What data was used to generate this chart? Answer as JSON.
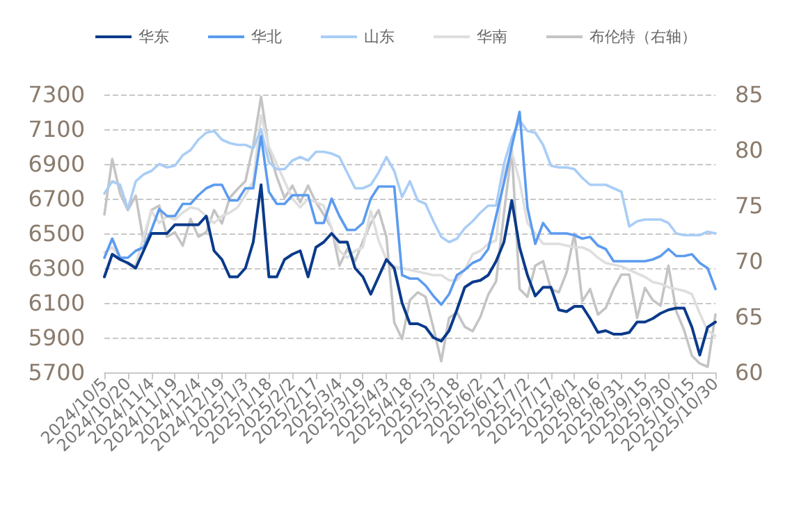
{
  "chart_data": {
    "type": "line",
    "categories": [
      "2024/10/5",
      null,
      null,
      "2024/10/20",
      null,
      null,
      "2024/11/4",
      null,
      null,
      "2024/11/19",
      null,
      null,
      "2024/12/4",
      null,
      null,
      "2024/12/19",
      null,
      null,
      "2025/1/3",
      null,
      null,
      "2025/1/18",
      null,
      null,
      "2025/2/2",
      null,
      null,
      "2025/2/17",
      null,
      null,
      "2025/3/4",
      null,
      null,
      "2025/3/19",
      null,
      null,
      "2025/4/3",
      null,
      null,
      "2025/4/18",
      null,
      null,
      "2025/5/3",
      null,
      null,
      "2025/5/18",
      null,
      null,
      "2025/6/2",
      null,
      null,
      "2025/6/17",
      null,
      null,
      "2025/7/2",
      null,
      null,
      "2025/7/17",
      null,
      null,
      "2025/8/1",
      null,
      null,
      "2025/8/16",
      null,
      null,
      "2025/8/31",
      null,
      null,
      "2025/9/15",
      null,
      null,
      "2025/9/30",
      null,
      null,
      "2025/10/15",
      null,
      null,
      "2025/10/30"
    ],
    "series": [
      {
        "name": "华东",
        "color": "#0a3a8a",
        "values": [
          6250,
          6380,
          6350,
          6330,
          6300,
          6400,
          6500,
          6500,
          6500,
          6550,
          6550,
          6550,
          6550,
          6600,
          6400,
          6350,
          6250,
          6250,
          6300,
          6450,
          6780,
          6250,
          6250,
          6350,
          6380,
          6400,
          6250,
          6420,
          6450,
          6500,
          6450,
          6450,
          6300,
          6250,
          6150,
          6250,
          6350,
          6300,
          6100,
          5980,
          5980,
          5960,
          5900,
          5880,
          5940,
          6060,
          6190,
          6220,
          6230,
          6260,
          6340,
          6450,
          6690,
          6420,
          6260,
          6140,
          6190,
          6190,
          6060,
          6050,
          6080,
          6080,
          6010,
          5930,
          5940,
          5920,
          5920,
          5930,
          5990,
          5990,
          6010,
          6040,
          6060,
          6070,
          6070,
          5960,
          5800,
          5960,
          5990
        ]
      },
      {
        "name": "华北",
        "color": "#5b9bef",
        "values": [
          6360,
          6470,
          6360,
          6360,
          6400,
          6420,
          6520,
          6640,
          6600,
          6600,
          6670,
          6670,
          6720,
          6760,
          6780,
          6780,
          6690,
          6690,
          6760,
          6760,
          7060,
          6740,
          6670,
          6670,
          6720,
          6720,
          6720,
          6560,
          6560,
          6700,
          6600,
          6520,
          6520,
          6560,
          6700,
          6770,
          6770,
          6770,
          6260,
          6240,
          6240,
          6200,
          6140,
          6090,
          6150,
          6260,
          6290,
          6330,
          6350,
          6410,
          6600,
          6790,
          7000,
          7200,
          6650,
          6440,
          6560,
          6500,
          6500,
          6500,
          6490,
          6470,
          6480,
          6430,
          6410,
          6340,
          6340,
          6340,
          6340,
          6340,
          6350,
          6370,
          6410,
          6370,
          6370,
          6380,
          6330,
          6300,
          6180
        ]
      },
      {
        "name": "山东",
        "color": "#a9cdf6",
        "values": [
          6730,
          6800,
          6780,
          6640,
          6800,
          6840,
          6860,
          6900,
          6880,
          6890,
          6950,
          6980,
          7040,
          7080,
          7090,
          7040,
          7020,
          7010,
          7010,
          6990,
          7100,
          6910,
          6870,
          6870,
          6920,
          6940,
          6920,
          6970,
          6970,
          6960,
          6940,
          6850,
          6760,
          6760,
          6780,
          6850,
          6940,
          6860,
          6710,
          6800,
          6690,
          6670,
          6570,
          6480,
          6450,
          6470,
          6530,
          6570,
          6620,
          6660,
          6660,
          6900,
          7050,
          7150,
          7090,
          7080,
          7010,
          6890,
          6880,
          6880,
          6870,
          6820,
          6780,
          6780,
          6780,
          6760,
          6740,
          6540,
          6570,
          6580,
          6580,
          6580,
          6560,
          6500,
          6490,
          6490,
          6490,
          6510,
          6500
        ]
      },
      {
        "name": "华南",
        "color": "#dedede",
        "values": [
          6390,
          6420,
          6360,
          6320,
          6320,
          6480,
          6630,
          6560,
          6600,
          6580,
          6620,
          6650,
          6640,
          6600,
          6560,
          6600,
          6620,
          6650,
          6720,
          6800,
          7180,
          7000,
          6900,
          6800,
          6700,
          6650,
          6700,
          6680,
          6660,
          6530,
          6400,
          6360,
          6400,
          6420,
          6630,
          6460,
          6350,
          6310,
          6300,
          6290,
          6280,
          6270,
          6260,
          6260,
          6230,
          6230,
          6290,
          6380,
          6400,
          6440,
          6460,
          6850,
          6970,
          6800,
          6560,
          6500,
          6440,
          6440,
          6440,
          6430,
          6420,
          6420,
          6400,
          6360,
          6330,
          6320,
          6310,
          6290,
          6270,
          6250,
          6220,
          6210,
          6190,
          6180,
          6170,
          6150,
          6040,
          5940,
          5910
        ]
      },
      {
        "name": "布伦特（右轴）",
        "color": "#c4c4c4",
        "axis": "y2",
        "values": [
          74.2,
          79.2,
          76.1,
          74.6,
          75.9,
          71.8,
          74.6,
          75,
          72.2,
          72.6,
          71.4,
          73.8,
          72.2,
          72.6,
          74.6,
          73.4,
          75.7,
          76.5,
          77.2,
          80.4,
          84.8,
          80,
          77.6,
          75.7,
          76.8,
          75.3,
          76.8,
          75.3,
          74.2,
          73,
          69.6,
          71.1,
          70,
          71.8,
          73.4,
          74.6,
          72.2,
          64.5,
          63,
          66.5,
          67.2,
          66.8,
          64,
          61,
          64.9,
          65.4,
          64.1,
          63.7,
          65,
          67,
          68.2,
          74.3,
          80,
          67.5,
          66.8,
          69.6,
          70,
          67.5,
          67.2,
          69,
          72.5,
          66.4,
          67.5,
          65.2,
          65.8,
          67.5,
          68.8,
          68.8,
          64.9,
          67.6,
          66.5,
          66,
          69.6,
          65.5,
          63.8,
          61.5,
          60.8,
          60.5,
          65.2
        ]
      }
    ],
    "ylim": [
      5700,
      7300
    ],
    "yticks": [
      5700,
      5900,
      6100,
      6300,
      6500,
      6700,
      6900,
      7100,
      7300
    ],
    "y2lim": [
      60,
      85
    ],
    "y2ticks": [
      60,
      65,
      70,
      75,
      80,
      85
    ],
    "grid": "y",
    "legend": "top",
    "marker": "none",
    "line_style": "solid"
  }
}
